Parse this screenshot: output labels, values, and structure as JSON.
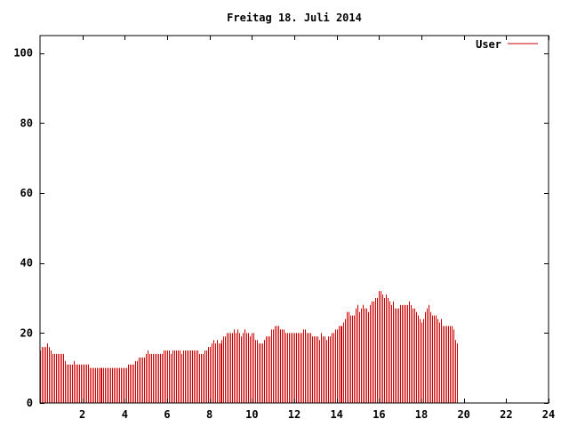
{
  "chart_data": {
    "type": "bar",
    "title": "Freitag 18. Juli 2014",
    "xlabel": "",
    "ylabel": "",
    "xlim": [
      0,
      24
    ],
    "ylim": [
      0,
      105
    ],
    "x_ticks": [
      2,
      4,
      6,
      8,
      10,
      12,
      14,
      16,
      18,
      20,
      22,
      24
    ],
    "x_tick_labels": [
      "2",
      "4",
      "6",
      "8",
      "10",
      "12",
      "14",
      "16",
      "18",
      "20",
      "22",
      "24"
    ],
    "y_ticks": [
      0,
      20,
      40,
      60,
      80,
      100
    ],
    "y_tick_labels": [
      "0",
      "20",
      "40",
      "60",
      "80",
      "100"
    ],
    "grid": false,
    "legend_position": "top-right",
    "bar_interval_hours": 0.0833,
    "series": [
      {
        "name": "User",
        "color": "#cc0000",
        "values": [
          15,
          16,
          16,
          16,
          17,
          16,
          15,
          14,
          14,
          14,
          14,
          14,
          14,
          14,
          12,
          11,
          11,
          11,
          11,
          12,
          11,
          11,
          11,
          11,
          11,
          11,
          11,
          11,
          10,
          10,
          10,
          10,
          10,
          10,
          10,
          10,
          10,
          10,
          10,
          10,
          10,
          10,
          10,
          10,
          10,
          10,
          10,
          10,
          10,
          10,
          11,
          11,
          11,
          11,
          12,
          12,
          13,
          13,
          13,
          13,
          14,
          15,
          14,
          14,
          14,
          14,
          14,
          14,
          14,
          14,
          15,
          15,
          15,
          15,
          14,
          15,
          15,
          15,
          15,
          15,
          14,
          15,
          15,
          15,
          15,
          15,
          15,
          15,
          15,
          15,
          14,
          14,
          14,
          15,
          15,
          16,
          16,
          17,
          18,
          17,
          18,
          17,
          17,
          18,
          19,
          19,
          20,
          20,
          20,
          20,
          21,
          20,
          21,
          20,
          19,
          20,
          21,
          20,
          20,
          19,
          20,
          20,
          18,
          18,
          17,
          17,
          17,
          18,
          19,
          19,
          19,
          21,
          21,
          22,
          22,
          22,
          21,
          21,
          21,
          20,
          20,
          20,
          20,
          20,
          20,
          20,
          20,
          20,
          20,
          21,
          21,
          20,
          20,
          20,
          19,
          19,
          19,
          19,
          18,
          20,
          19,
          19,
          18,
          19,
          19,
          20,
          20,
          21,
          21,
          22,
          22,
          22,
          23,
          24,
          26,
          26,
          25,
          25,
          25,
          27,
          28,
          26,
          27,
          28,
          27,
          27,
          26,
          28,
          29,
          29,
          30,
          30,
          32,
          32,
          31,
          30,
          31,
          30,
          29,
          28,
          29,
          27,
          27,
          27,
          28,
          28,
          28,
          28,
          28,
          29,
          28,
          27,
          27,
          26,
          25,
          24,
          23,
          24,
          26,
          27,
          28,
          26,
          25,
          25,
          25,
          24,
          23,
          24,
          22,
          22,
          22,
          22,
          22,
          22,
          21,
          18,
          17
        ]
      }
    ]
  }
}
